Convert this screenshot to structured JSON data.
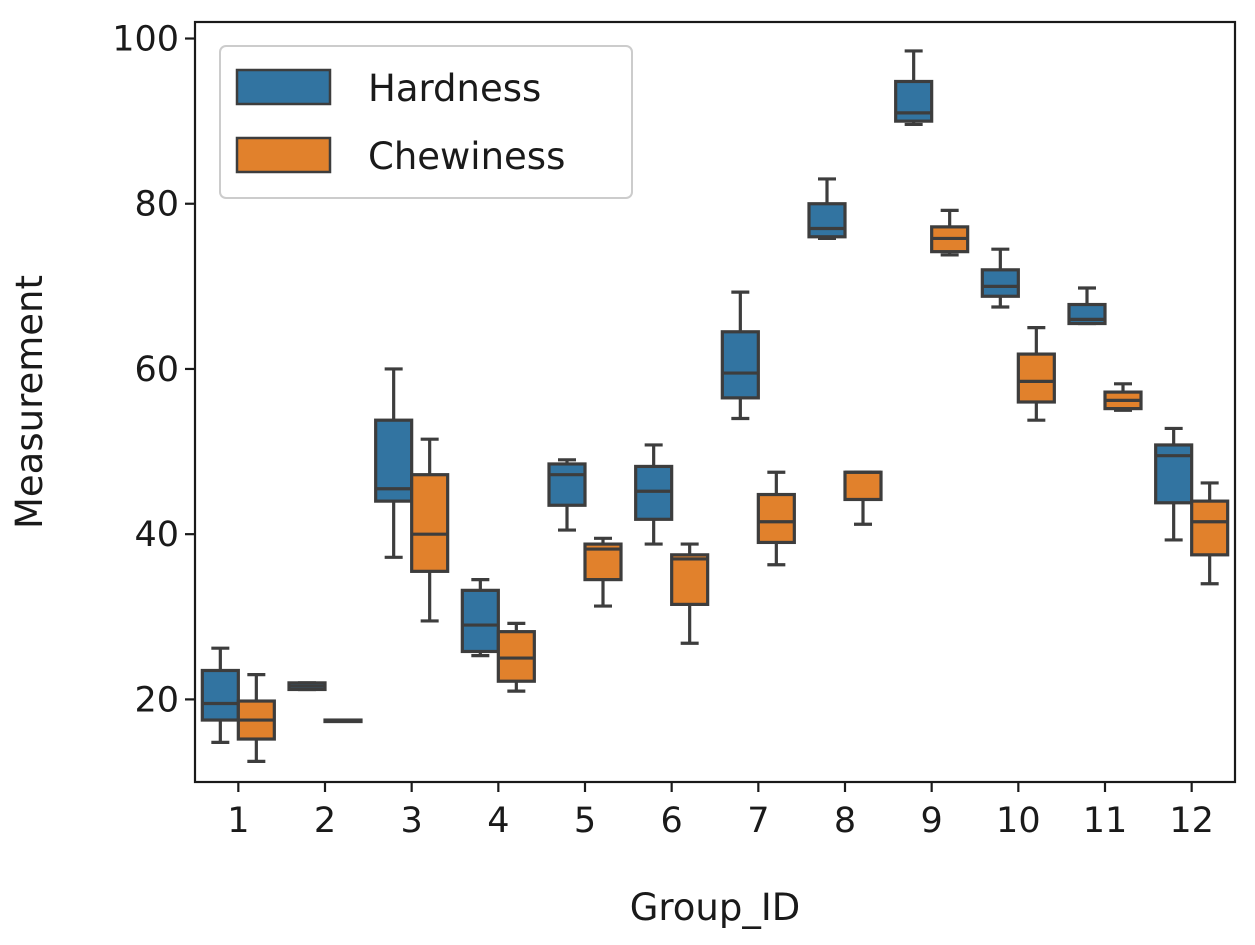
{
  "chart_data": {
    "type": "boxplot",
    "xlabel": "Group_ID",
    "ylabel": "Measurement",
    "ylim": [
      10,
      102
    ],
    "yticks": [
      20,
      40,
      60,
      80,
      100
    ],
    "tick_labels": {
      "y": [
        "20",
        "40",
        "60",
        "80",
        "100"
      ]
    },
    "categories": [
      "1",
      "2",
      "3",
      "4",
      "5",
      "6",
      "7",
      "8",
      "9",
      "10",
      "11",
      "12"
    ],
    "legend": {
      "position": "upper-left",
      "entries": [
        "Hardness",
        "Chewiness"
      ]
    },
    "series": [
      {
        "name": "Hardness",
        "color": "#3274a1",
        "boxes": [
          {
            "group": "1",
            "min": 14.8,
            "q1": 17.5,
            "median": 19.5,
            "q3": 23.5,
            "max": 26.2
          },
          {
            "group": "2",
            "min": 21.2,
            "q1": 21.2,
            "median": 21.6,
            "q3": 22.0,
            "max": 22.0
          },
          {
            "group": "3",
            "min": 37.2,
            "q1": 44.0,
            "median": 45.5,
            "q3": 53.8,
            "max": 60.0
          },
          {
            "group": "4",
            "min": 25.3,
            "q1": 25.8,
            "median": 29.0,
            "q3": 33.2,
            "max": 34.5
          },
          {
            "group": "5",
            "min": 40.5,
            "q1": 43.5,
            "median": 47.2,
            "q3": 48.5,
            "max": 49.0
          },
          {
            "group": "6",
            "min": 38.8,
            "q1": 41.8,
            "median": 45.2,
            "q3": 48.2,
            "max": 50.8
          },
          {
            "group": "7",
            "min": 54.0,
            "q1": 56.5,
            "median": 59.5,
            "q3": 64.5,
            "max": 69.3
          },
          {
            "group": "8",
            "min": 75.8,
            "q1": 76.0,
            "median": 77.0,
            "q3": 80.0,
            "max": 83.0
          },
          {
            "group": "9",
            "min": 89.6,
            "q1": 90.0,
            "median": 91.0,
            "q3": 94.8,
            "max": 98.5
          },
          {
            "group": "10",
            "min": 67.5,
            "q1": 68.8,
            "median": 70.0,
            "q3": 72.0,
            "max": 74.5
          },
          {
            "group": "11",
            "min": 65.5,
            "q1": 65.5,
            "median": 66.0,
            "q3": 67.8,
            "max": 69.8
          },
          {
            "group": "12",
            "min": 39.3,
            "q1": 43.8,
            "median": 49.5,
            "q3": 50.8,
            "max": 52.8
          }
        ]
      },
      {
        "name": "Chewiness",
        "color": "#e1812c",
        "boxes": [
          {
            "group": "1",
            "min": 12.5,
            "q1": 15.2,
            "median": 17.5,
            "q3": 19.8,
            "max": 23.0
          },
          {
            "group": "2",
            "min": 17.5,
            "q1": 17.5,
            "median": 17.5,
            "q3": 17.5,
            "max": 17.5
          },
          {
            "group": "3",
            "min": 29.5,
            "q1": 35.5,
            "median": 40.0,
            "q3": 47.2,
            "max": 51.5
          },
          {
            "group": "4",
            "min": 21.0,
            "q1": 22.2,
            "median": 25.0,
            "q3": 28.2,
            "max": 29.2
          },
          {
            "group": "5",
            "min": 31.3,
            "q1": 34.5,
            "median": 38.2,
            "q3": 38.8,
            "max": 39.5
          },
          {
            "group": "6",
            "min": 26.8,
            "q1": 31.5,
            "median": 37.0,
            "q3": 37.5,
            "max": 38.8
          },
          {
            "group": "7",
            "min": 36.3,
            "q1": 39.0,
            "median": 41.5,
            "q3": 44.8,
            "max": 47.5
          },
          {
            "group": "8",
            "min": 41.2,
            "q1": 44.2,
            "median": 47.5,
            "q3": 47.5,
            "max": 47.5
          },
          {
            "group": "9",
            "min": 73.8,
            "q1": 74.2,
            "median": 75.8,
            "q3": 77.2,
            "max": 79.2
          },
          {
            "group": "10",
            "min": 53.8,
            "q1": 56.0,
            "median": 58.5,
            "q3": 61.8,
            "max": 65.0
          },
          {
            "group": "11",
            "min": 55.0,
            "q1": 55.2,
            "median": 56.2,
            "q3": 57.2,
            "max": 58.2
          },
          {
            "group": "12",
            "min": 34.0,
            "q1": 37.5,
            "median": 41.5,
            "q3": 44.0,
            "max": 46.2
          }
        ]
      }
    ]
  }
}
